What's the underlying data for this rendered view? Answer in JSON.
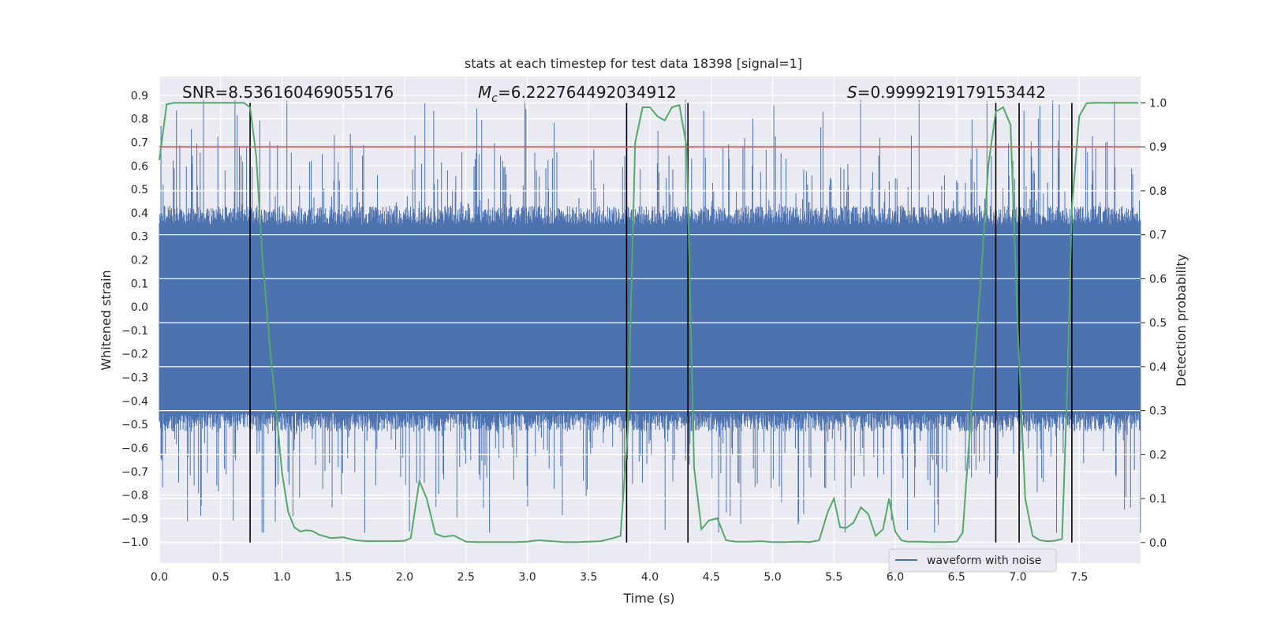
{
  "chart_data": {
    "type": "line",
    "title": "stats at each timestep for test data 18398 [signal=1]",
    "xlabel": "Time (s)",
    "ylabel": "Whitened strain",
    "y2label": "Detection probability",
    "xlim": [
      0.0,
      8.0
    ],
    "ylim": [
      -1.09,
      0.98
    ],
    "y2lim": [
      -0.047,
      1.06
    ],
    "x_ticks": [
      0.0,
      0.5,
      1.0,
      1.5,
      2.0,
      2.5,
      3.0,
      3.5,
      4.0,
      4.5,
      5.0,
      5.5,
      6.0,
      6.5,
      7.0,
      7.5
    ],
    "y_ticks": [
      0.9,
      0.8,
      0.7,
      0.6,
      0.5,
      0.4,
      0.3,
      0.2,
      0.1,
      0.0,
      -0.1,
      -0.2,
      -0.3,
      -0.4,
      -0.5,
      -0.6,
      -0.7,
      -0.8,
      -0.9,
      -1.0
    ],
    "y2_ticks": [
      1.0,
      0.9,
      0.8,
      0.7,
      0.6,
      0.5,
      0.4,
      0.3,
      0.2,
      0.1,
      0.0
    ],
    "grid": true,
    "legend_position": "bottom-right",
    "annotations": {
      "snr": "SNR=8.536160469055176",
      "mc_symbol": "M",
      "mc_sub": "c",
      "mc_value": "=6.222764492034912",
      "s_symbol": "S",
      "s_value": "=0.9999219179153442"
    },
    "threshold": {
      "value": 0.9,
      "axis": "y2",
      "color": "#c44e52"
    },
    "vlines": [
      0.74,
      3.81,
      4.31,
      6.82,
      7.01,
      7.44
    ],
    "series": [
      {
        "name": "waveform with noise",
        "color": "#4c72b0",
        "kind": "noise",
        "envelope_high": 0.35,
        "envelope_low": -0.45,
        "spike_max": 0.88,
        "spike_min": -0.96
      },
      {
        "kind": "line",
        "axis": "y2",
        "color": "#55a868",
        "x": [
          0.0,
          0.06,
          0.12,
          0.2,
          0.3,
          0.4,
          0.5,
          0.6,
          0.69,
          0.74,
          0.79,
          0.84,
          0.9,
          0.96,
          1.0,
          1.05,
          1.1,
          1.15,
          1.2,
          1.25,
          1.3,
          1.4,
          1.5,
          1.6,
          1.7,
          1.8,
          1.9,
          2.0,
          2.05,
          2.12,
          2.18,
          2.25,
          2.32,
          2.4,
          2.5,
          2.6,
          2.7,
          2.8,
          2.9,
          3.0,
          3.05,
          3.1,
          3.2,
          3.3,
          3.4,
          3.5,
          3.6,
          3.7,
          3.76,
          3.82,
          3.88,
          3.94,
          4.0,
          4.06,
          4.12,
          4.18,
          4.24,
          4.3,
          4.36,
          4.42,
          4.48,
          4.55,
          4.62,
          4.7,
          4.8,
          4.9,
          5.0,
          5.1,
          5.2,
          5.3,
          5.38,
          5.45,
          5.5,
          5.55,
          5.6,
          5.66,
          5.72,
          5.78,
          5.84,
          5.9,
          5.95,
          6.0,
          6.05,
          6.1,
          6.15,
          6.2,
          6.3,
          6.4,
          6.5,
          6.55,
          6.62,
          6.7,
          6.76,
          6.82,
          6.88,
          6.94,
          7.0,
          7.06,
          7.12,
          7.18,
          7.24,
          7.3,
          7.36,
          7.4,
          7.44,
          7.5,
          7.56,
          7.62,
          7.7,
          7.8,
          7.9,
          7.98
        ],
        "values": [
          0.87,
          0.997,
          1.0,
          1.0,
          1.0,
          1.0,
          1.0,
          1.0,
          1.0,
          0.99,
          0.88,
          0.65,
          0.45,
          0.28,
          0.16,
          0.07,
          0.035,
          0.025,
          0.028,
          0.026,
          0.018,
          0.01,
          0.012,
          0.005,
          0.003,
          0.003,
          0.003,
          0.004,
          0.01,
          0.14,
          0.1,
          0.02,
          0.013,
          0.016,
          0.002,
          0.001,
          0.001,
          0.001,
          0.001,
          0.002,
          0.004,
          0.005,
          0.003,
          0.001,
          0.001,
          0.002,
          0.003,
          0.01,
          0.015,
          0.26,
          0.91,
          0.99,
          0.99,
          0.97,
          0.96,
          0.99,
          0.995,
          0.9,
          0.17,
          0.03,
          0.05,
          0.055,
          0.005,
          0.002,
          0.002,
          0.003,
          0.001,
          0.001,
          0.002,
          0.001,
          0.005,
          0.07,
          0.1,
          0.035,
          0.033,
          0.045,
          0.08,
          0.065,
          0.015,
          0.03,
          0.1,
          0.025,
          0.005,
          0.002,
          0.002,
          0.002,
          0.001,
          0.001,
          0.002,
          0.022,
          0.3,
          0.61,
          0.86,
          0.98,
          0.99,
          0.95,
          0.48,
          0.1,
          0.015,
          0.005,
          0.003,
          0.004,
          0.008,
          0.33,
          0.76,
          0.97,
          0.999,
          1.0,
          1.0,
          1.0,
          1.0,
          1.0
        ]
      }
    ]
  }
}
